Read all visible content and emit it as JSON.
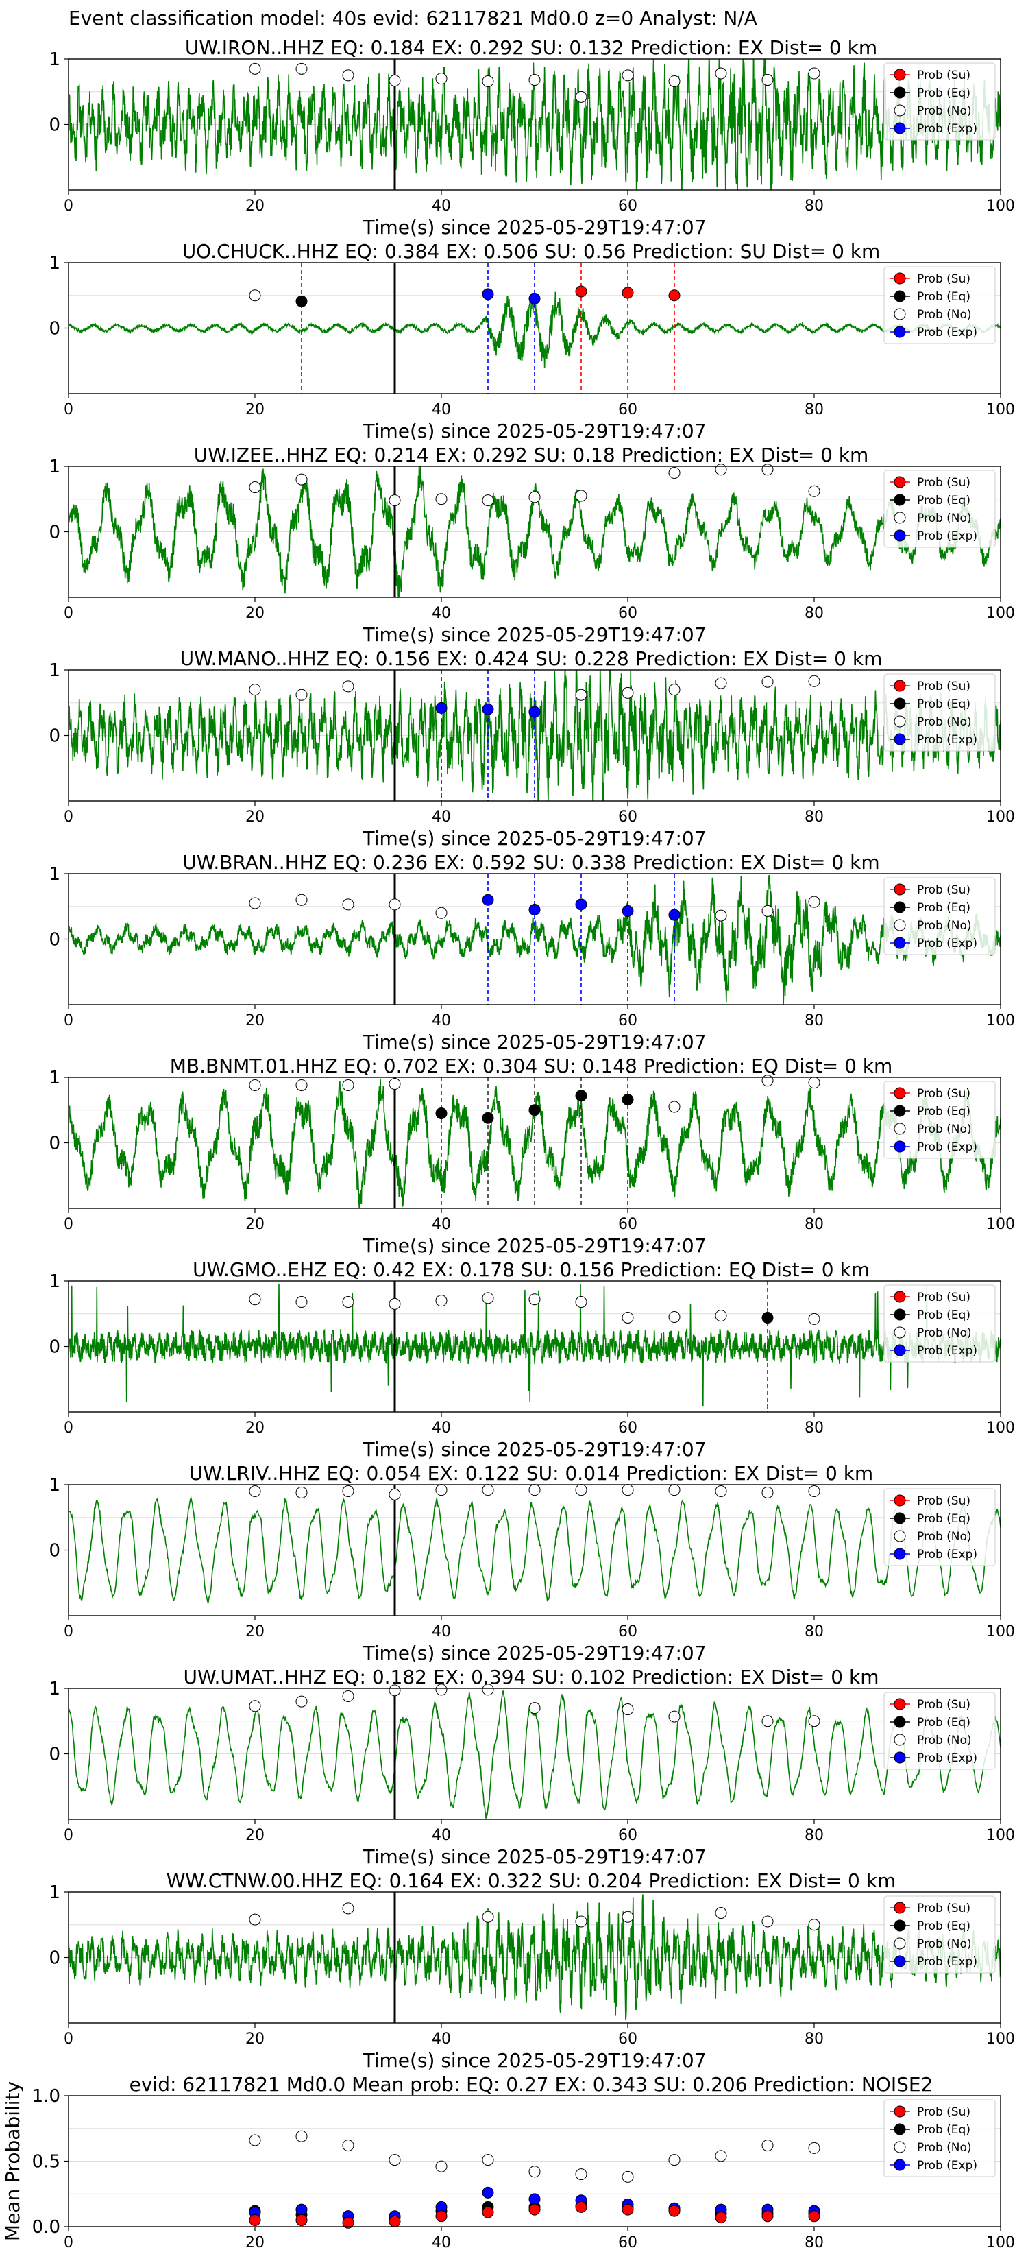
{
  "figure": {
    "suptitle": "Event classification model: 40s evid: 62117821 Md0.0 z=0 Analyst: N/A"
  },
  "colors": {
    "waveform": "#008000",
    "su": "#ff0000",
    "eq": "#000000",
    "no": "#ffffff",
    "exp": "#0000ff",
    "grid": "#dddddd"
  },
  "chart_data": [
    {
      "type": "line",
      "title": "UW.IRON..HHZ   EQ: 0.184  EX: 0.292  SU: 0.132   Prediction: EX    Dist= 0 km",
      "xlabel": "Time(s) since 2025-05-29T19:47:07",
      "xlim": [
        0,
        100
      ],
      "ylim": [
        -1,
        1
      ],
      "xticks": [
        "0",
        "20",
        "40",
        "60",
        "80",
        "100"
      ],
      "yticks": [
        "1",
        "0"
      ],
      "waveform": {
        "style": "dense",
        "seed": 11,
        "envelope": [
          [
            0,
            0.5
          ],
          [
            35,
            0.6
          ],
          [
            65,
            0.8
          ],
          [
            72,
            1.0
          ],
          [
            80,
            0.7
          ],
          [
            100,
            0.55
          ]
        ]
      },
      "origin_line_x": 35,
      "legend": [
        "Prob (Su)",
        "Prob (Eq)",
        "Prob (No)",
        "Prob (Exp)"
      ],
      "points": {
        "x": [
          20,
          25,
          30,
          35,
          40,
          45,
          50,
          55,
          60,
          65,
          70,
          75,
          80
        ],
        "no": [
          0.85,
          0.85,
          0.75,
          0.67,
          0.7,
          0.66,
          0.68,
          0.42,
          0.75,
          0.66,
          0.78,
          0.68,
          0.78
        ],
        "su": [],
        "eq": [],
        "exp": []
      },
      "dashed_lines": []
    },
    {
      "type": "line",
      "title": "UO.CHUCK..HHZ   EQ: 0.384  EX: 0.506  SU: 0.56   Prediction: SU    Dist= 0 km",
      "xlabel": "Time(s) since 2025-05-29T19:47:07",
      "xlim": [
        0,
        100
      ],
      "ylim": [
        -1,
        1
      ],
      "xticks": [
        "0",
        "20",
        "40",
        "60",
        "80",
        "100"
      ],
      "yticks": [
        "1",
        "0"
      ],
      "waveform": {
        "style": "quiet",
        "seed": 23,
        "envelope": [
          [
            0,
            0.06
          ],
          [
            44,
            0.08
          ],
          [
            46,
            0.45
          ],
          [
            52,
            0.6
          ],
          [
            56,
            0.25
          ],
          [
            62,
            0.08
          ],
          [
            100,
            0.06
          ]
        ]
      },
      "origin_line_x": 35,
      "legend": [
        "Prob (Su)",
        "Prob (Eq)",
        "Prob (No)",
        "Prob (Exp)"
      ],
      "points": {
        "x": [
          20,
          25,
          45,
          50,
          55,
          60,
          65
        ],
        "no": [
          0.5,
          null,
          null,
          null,
          null,
          null,
          null
        ],
        "eq": [
          null,
          0.41,
          null,
          null,
          null,
          null,
          null
        ],
        "exp": [
          null,
          null,
          0.52,
          0.45,
          null,
          null,
          null
        ],
        "su": [
          null,
          null,
          null,
          null,
          0.56,
          0.54,
          0.5
        ]
      },
      "dashed_lines": [
        {
          "x": 25,
          "cls": "eq"
        },
        {
          "x": 45,
          "cls": "exp"
        },
        {
          "x": 50,
          "cls": "exp"
        },
        {
          "x": 55,
          "cls": "su"
        },
        {
          "x": 60,
          "cls": "su"
        },
        {
          "x": 65,
          "cls": "su"
        }
      ]
    },
    {
      "type": "line",
      "title": "UW.IZEE..HHZ   EQ: 0.214  EX: 0.292  SU: 0.18   Prediction: EX    Dist= 0 km",
      "xlabel": "Time(s) since 2025-05-29T19:47:07",
      "xlim": [
        0,
        100
      ],
      "ylim": [
        -1,
        1
      ],
      "xticks": [
        "0",
        "20",
        "40",
        "60",
        "80",
        "100"
      ],
      "yticks": [
        "1",
        "0"
      ],
      "waveform": {
        "style": "wavy",
        "seed": 37,
        "envelope": [
          [
            0,
            0.6
          ],
          [
            35,
            0.9
          ],
          [
            55,
            0.55
          ],
          [
            100,
            0.45
          ]
        ]
      },
      "origin_line_x": 35,
      "legend": [
        "Prob (Su)",
        "Prob (Eq)",
        "Prob (No)",
        "Prob (Exp)"
      ],
      "points": {
        "x": [
          20,
          25,
          35,
          40,
          45,
          50,
          55,
          65,
          70,
          75,
          80
        ],
        "no": [
          0.68,
          0.8,
          0.48,
          0.5,
          0.48,
          0.53,
          0.55,
          0.9,
          0.95,
          0.95,
          0.62
        ],
        "su": [],
        "eq": [],
        "exp": []
      },
      "dashed_lines": []
    },
    {
      "type": "line",
      "title": "UW.MANO..HHZ   EQ: 0.156  EX: 0.424  SU: 0.228   Prediction: EX    Dist= 0 km",
      "xlabel": "Time(s) since 2025-05-29T19:47:07",
      "xlim": [
        0,
        100
      ],
      "ylim": [
        -1,
        1
      ],
      "xticks": [
        "0",
        "20",
        "40",
        "60",
        "80",
        "100"
      ],
      "yticks": [
        "1",
        "0"
      ],
      "waveform": {
        "style": "dense",
        "seed": 41,
        "envelope": [
          [
            0,
            0.45
          ],
          [
            35,
            0.55
          ],
          [
            50,
            0.75
          ],
          [
            55,
            0.95
          ],
          [
            70,
            0.55
          ],
          [
            100,
            0.45
          ]
        ]
      },
      "origin_line_x": 35,
      "legend": [
        "Prob (Su)",
        "Prob (Eq)",
        "Prob (No)",
        "Prob (Exp)"
      ],
      "points": {
        "x": [
          20,
          25,
          30,
          40,
          45,
          50,
          55,
          60,
          65,
          70,
          75,
          80
        ],
        "no": [
          0.7,
          0.62,
          0.75,
          null,
          null,
          null,
          0.62,
          0.65,
          0.7,
          0.8,
          0.82,
          0.83
        ],
        "exp": [
          null,
          null,
          null,
          0.42,
          0.4,
          0.36,
          null,
          null,
          null,
          null,
          null,
          null
        ],
        "su": [],
        "eq": []
      },
      "dashed_lines": [
        {
          "x": 40,
          "cls": "exp"
        },
        {
          "x": 45,
          "cls": "exp"
        },
        {
          "x": 50,
          "cls": "exp"
        }
      ]
    },
    {
      "type": "line",
      "title": "UW.BRAN..HHZ   EQ: 0.236  EX: 0.592  SU: 0.338   Prediction: EX    Dist= 0 km",
      "xlabel": "Time(s) since 2025-05-29T19:47:07",
      "xlim": [
        0,
        100
      ],
      "ylim": [
        -1,
        1
      ],
      "xticks": [
        "0",
        "20",
        "40",
        "60",
        "80",
        "100"
      ],
      "yticks": [
        "1",
        "0"
      ],
      "waveform": {
        "style": "mixed",
        "seed": 53,
        "envelope": [
          [
            0,
            0.2
          ],
          [
            35,
            0.25
          ],
          [
            58,
            0.35
          ],
          [
            62,
            0.7
          ],
          [
            77,
            0.9
          ],
          [
            85,
            0.4
          ],
          [
            100,
            0.3
          ]
        ]
      },
      "origin_line_x": 35,
      "legend": [
        "Prob (Su)",
        "Prob (Eq)",
        "Prob (No)",
        "Prob (Exp)"
      ],
      "points": {
        "x": [
          20,
          25,
          30,
          35,
          40,
          45,
          50,
          55,
          60,
          65,
          70,
          75,
          80
        ],
        "no": [
          0.55,
          0.6,
          0.53,
          0.53,
          0.4,
          null,
          null,
          null,
          null,
          null,
          0.36,
          0.43,
          0.57
        ],
        "exp": [
          null,
          null,
          null,
          null,
          null,
          0.6,
          0.45,
          0.53,
          0.43,
          0.37,
          null,
          null,
          null
        ],
        "su": [],
        "eq": []
      },
      "dashed_lines": [
        {
          "x": 45,
          "cls": "exp"
        },
        {
          "x": 50,
          "cls": "exp"
        },
        {
          "x": 55,
          "cls": "exp"
        },
        {
          "x": 60,
          "cls": "exp"
        },
        {
          "x": 65,
          "cls": "exp"
        }
      ]
    },
    {
      "type": "line",
      "title": "MB.BNMT.01.HHZ   EQ: 0.702  EX: 0.304  SU: 0.148   Prediction: EQ    Dist= 0 km",
      "xlabel": "Time(s) since 2025-05-29T19:47:07",
      "xlim": [
        0,
        100
      ],
      "ylim": [
        -1,
        1
      ],
      "xticks": [
        "0",
        "20",
        "40",
        "60",
        "80",
        "100"
      ],
      "yticks": [
        "1",
        "0"
      ],
      "waveform": {
        "style": "wavy",
        "seed": 67,
        "envelope": [
          [
            0,
            0.6
          ],
          [
            35,
            0.85
          ],
          [
            55,
            0.7
          ],
          [
            100,
            0.65
          ]
        ]
      },
      "origin_line_x": 35,
      "legend": [
        "Prob (Su)",
        "Prob (Eq)",
        "Prob (No)",
        "Prob (Exp)"
      ],
      "points": {
        "x": [
          20,
          25,
          30,
          35,
          40,
          45,
          50,
          55,
          60,
          65,
          75,
          80
        ],
        "no": [
          0.88,
          0.88,
          0.88,
          0.9,
          null,
          null,
          null,
          null,
          null,
          0.55,
          0.95,
          0.92
        ],
        "eq": [
          null,
          null,
          null,
          null,
          0.45,
          0.38,
          0.5,
          0.72,
          0.66,
          null,
          null,
          null
        ],
        "su": [],
        "exp": []
      },
      "dashed_lines": [
        {
          "x": 40,
          "cls": "eq"
        },
        {
          "x": 45,
          "cls": "eq"
        },
        {
          "x": 50,
          "cls": "eq"
        },
        {
          "x": 55,
          "cls": "eq"
        },
        {
          "x": 60,
          "cls": "eq"
        }
      ]
    },
    {
      "type": "line",
      "title": "UW.GMO..EHZ   EQ: 0.42  EX: 0.178  SU: 0.156   Prediction: EQ    Dist= 0 km",
      "xlabel": "Time(s) since 2025-05-29T19:47:07",
      "xlim": [
        0,
        100
      ],
      "ylim": [
        -1,
        1
      ],
      "xticks": [
        "0",
        "20",
        "40",
        "60",
        "80",
        "100"
      ],
      "yticks": [
        "1",
        "0"
      ],
      "waveform": {
        "style": "spiky",
        "seed": 79,
        "envelope": [
          [
            0,
            0.3
          ],
          [
            100,
            0.3
          ]
        ]
      },
      "origin_line_x": 35,
      "legend": [
        "Prob (Su)",
        "Prob (Eq)",
        "Prob (No)",
        "Prob (Exp)"
      ],
      "points": {
        "x": [
          20,
          25,
          30,
          35,
          40,
          45,
          50,
          55,
          60,
          65,
          70,
          75,
          80
        ],
        "no": [
          0.72,
          0.68,
          0.68,
          0.65,
          0.7,
          0.74,
          0.72,
          0.68,
          0.44,
          0.45,
          0.47,
          null,
          0.42
        ],
        "eq": [
          null,
          null,
          null,
          null,
          null,
          null,
          null,
          null,
          null,
          null,
          null,
          0.44,
          null
        ],
        "su": [],
        "exp": []
      },
      "dashed_lines": [
        {
          "x": 75,
          "cls": "eq"
        }
      ]
    },
    {
      "type": "line",
      "title": "UW.LRIV..HHZ   EQ: 0.054  EX: 0.122  SU: 0.014   Prediction: EX    Dist= 0 km",
      "xlabel": "Time(s) since 2025-05-29T19:47:07",
      "xlim": [
        0,
        100
      ],
      "ylim": [
        -1,
        1
      ],
      "xticks": [
        "0",
        "20",
        "40",
        "60",
        "80",
        "100"
      ],
      "yticks": [
        "1",
        "0"
      ],
      "waveform": {
        "style": "smooth",
        "seed": 83,
        "envelope": [
          [
            0,
            0.8
          ],
          [
            35,
            0.75
          ],
          [
            100,
            0.7
          ]
        ]
      },
      "origin_line_x": 35,
      "legend": [
        "Prob (Su)",
        "Prob (Eq)",
        "Prob (No)",
        "Prob (Exp)"
      ],
      "points": {
        "x": [
          20,
          25,
          30,
          35,
          40,
          45,
          50,
          55,
          60,
          65,
          70,
          75,
          80
        ],
        "no": [
          0.9,
          0.88,
          0.9,
          0.85,
          0.92,
          0.92,
          0.92,
          0.92,
          0.92,
          0.92,
          0.9,
          0.88,
          0.9
        ],
        "su": [],
        "eq": [],
        "exp": []
      },
      "dashed_lines": []
    },
    {
      "type": "line",
      "title": "UW.UMAT..HHZ   EQ: 0.182  EX: 0.394  SU: 0.102   Prediction: EX    Dist= 0 km",
      "xlabel": "Time(s) since 2025-05-29T19:47:07",
      "xlim": [
        0,
        100
      ],
      "ylim": [
        -1,
        1
      ],
      "xticks": [
        "0",
        "20",
        "40",
        "60",
        "80",
        "100"
      ],
      "yticks": [
        "1",
        "0"
      ],
      "waveform": {
        "style": "smooth",
        "seed": 97,
        "envelope": [
          [
            0,
            0.75
          ],
          [
            35,
            0.7
          ],
          [
            45,
            0.95
          ],
          [
            65,
            0.8
          ],
          [
            100,
            0.55
          ]
        ]
      },
      "origin_line_x": 35,
      "legend": [
        "Prob (Su)",
        "Prob (Eq)",
        "Prob (No)",
        "Prob (Exp)"
      ],
      "points": {
        "x": [
          20,
          25,
          30,
          35,
          40,
          45,
          50,
          60,
          65,
          75,
          80
        ],
        "no": [
          0.73,
          0.8,
          0.88,
          0.97,
          0.98,
          0.98,
          0.7,
          0.68,
          0.57,
          0.5,
          0.5
        ],
        "su": [],
        "eq": [],
        "exp": []
      },
      "dashed_lines": []
    },
    {
      "type": "line",
      "title": "WW.CTNW.00.HHZ   EQ: 0.164  EX: 0.322  SU: 0.204   Prediction: EX    Dist= 0 km",
      "xlabel": "Time(s) since 2025-05-29T19:47:07",
      "xlim": [
        0,
        100
      ],
      "ylim": [
        -1,
        1
      ],
      "xticks": [
        "0",
        "20",
        "40",
        "60",
        "80",
        "100"
      ],
      "yticks": [
        "1",
        "0"
      ],
      "waveform": {
        "style": "dense",
        "seed": 101,
        "envelope": [
          [
            0,
            0.3
          ],
          [
            35,
            0.35
          ],
          [
            45,
            0.55
          ],
          [
            60,
            0.75
          ],
          [
            70,
            0.45
          ],
          [
            100,
            0.3
          ]
        ]
      },
      "origin_line_x": 35,
      "legend": [
        "Prob (Su)",
        "Prob (Eq)",
        "Prob (No)",
        "Prob (Exp)"
      ],
      "points": {
        "x": [
          20,
          30,
          45,
          55,
          60,
          70,
          75,
          80
        ],
        "no": [
          0.58,
          0.75,
          0.62,
          0.55,
          0.62,
          0.68,
          0.55,
          0.5
        ],
        "su": [],
        "eq": [],
        "exp": []
      },
      "dashed_lines": []
    },
    {
      "type": "scatter",
      "title": "evid: 62117821  Md0.0   Mean prob:   EQ: 0.27  EX: 0.343  SU: 0.206   Prediction: NOISE2",
      "xlabel": "",
      "ylabel": "Mean Probability",
      "xlim": [
        0,
        100
      ],
      "ylim": [
        0,
        1
      ],
      "xticks": [
        "0",
        "20",
        "40",
        "60",
        "80",
        "100"
      ],
      "yticks": [
        "1.0",
        "0.5",
        "0.0"
      ],
      "legend": [
        "Prob (Su)",
        "Prob (Eq)",
        "Prob (No)",
        "Prob (Exp)"
      ],
      "points": {
        "x": [
          20,
          25,
          30,
          35,
          40,
          45,
          50,
          55,
          60,
          65,
          70,
          75,
          80
        ],
        "no": [
          0.66,
          0.69,
          0.62,
          0.51,
          0.46,
          0.51,
          0.42,
          0.4,
          0.38,
          0.51,
          0.54,
          0.62,
          0.6
        ],
        "eq": [
          0.12,
          0.09,
          0.08,
          0.07,
          0.12,
          0.15,
          0.15,
          0.16,
          0.15,
          0.13,
          0.1,
          0.1,
          0.1
        ],
        "exp": [
          0.11,
          0.13,
          0.08,
          0.08,
          0.15,
          0.26,
          0.21,
          0.2,
          0.17,
          0.14,
          0.13,
          0.13,
          0.12
        ],
        "su": [
          0.05,
          0.05,
          0.03,
          0.04,
          0.08,
          0.11,
          0.13,
          0.15,
          0.13,
          0.12,
          0.07,
          0.08,
          0.08
        ]
      }
    }
  ]
}
